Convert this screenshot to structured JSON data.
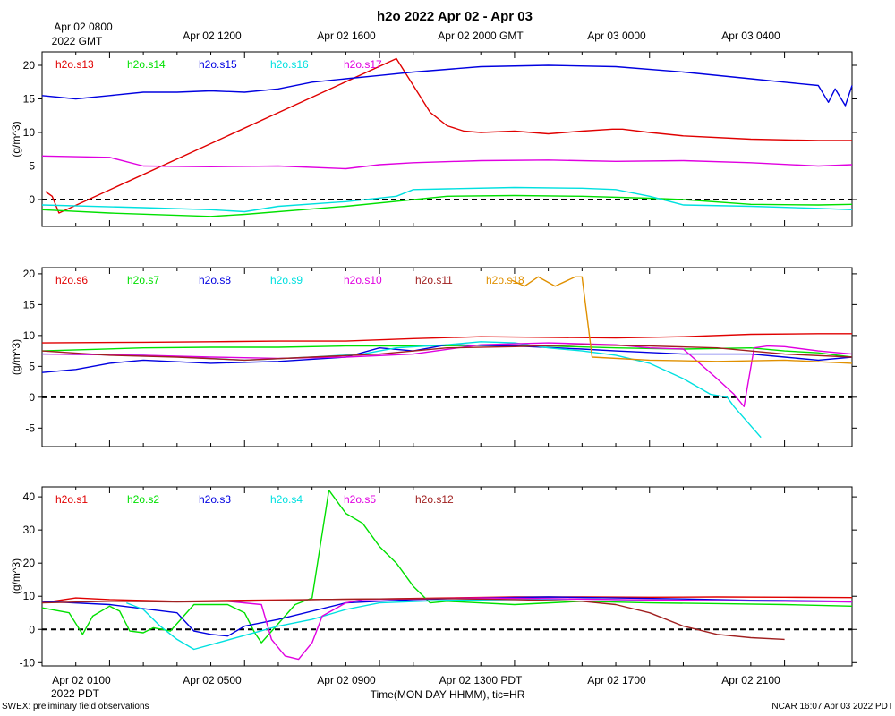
{
  "chart_data": {
    "title": "h2o 2022 Apr 02 - Apr 03",
    "type": "line",
    "xlabel": "Time(MON DAY HHMM), tic=HR",
    "top_time_labels": [
      "Apr 02 0800",
      "Apr 02 1200",
      "Apr 02 1600",
      "Apr 02 2000 GMT",
      "Apr 03 0000",
      "Apr 03 0400"
    ],
    "top_time_sub": "2022 GMT",
    "bottom_time_labels": [
      "Apr 02 0100",
      "Apr 02 0500",
      "Apr 02 0900",
      "Apr 02 1300 PDT",
      "Apr 02 1700",
      "Apr 02 2100"
    ],
    "bottom_time_sub": "2022 PDT",
    "x_range_hours": [
      -1.0,
      23.0
    ],
    "footer_left": "SWEX: preliminary field observations",
    "footer_right": "NCAR 16:07 Apr 03 2022 PDT",
    "panels": [
      {
        "ylabel": "(g/m^3)",
        "ylim": [
          -4,
          22
        ],
        "yticks": [
          0,
          5,
          10,
          15,
          20
        ],
        "zero_line": 0,
        "series": [
          {
            "name": "h2o.s13",
            "color": "#e00000",
            "x": [
              -0.9,
              -0.7,
              -0.5,
              9.5,
              10.0,
              10.5,
              11.0,
              11.5,
              12.0,
              13.0,
              14.0,
              15.0,
              15.9,
              16.2,
              17.0,
              18.0,
              20.0,
              22.0,
              23.0
            ],
            "y": [
              1.2,
              0.5,
              -2.0,
              21,
              17,
              13,
              11,
              10.2,
              10.0,
              10.2,
              9.8,
              10.2,
              10.5,
              10.5,
              10.0,
              9.5,
              9.0,
              8.8,
              8.8
            ]
          },
          {
            "name": "h2o.s14",
            "color": "#00e000",
            "x": [
              -1,
              1,
              4,
              5,
              8,
              11,
              13,
              15,
              17,
              18,
              20,
              22,
              23
            ],
            "y": [
              -1.5,
              -2.0,
              -2.5,
              -2.2,
              -1.0,
              0.5,
              0.6,
              0.5,
              0.2,
              0,
              -0.7,
              -0.8,
              -0.7
            ]
          },
          {
            "name": "h2o.s15",
            "color": "#0000e0",
            "x": [
              -1,
              0,
              1,
              2,
              3,
              4,
              5,
              6,
              7,
              8,
              9,
              10,
              12,
              14,
              16,
              18,
              20,
              21,
              22,
              22.3,
              22.5,
              22.8,
              23
            ],
            "y": [
              15.5,
              15.0,
              15.5,
              16,
              16,
              16.2,
              16,
              16.5,
              17.5,
              18,
              18.5,
              19,
              19.8,
              20,
              19.8,
              19,
              18,
              17.5,
              17,
              14.5,
              16.5,
              14,
              17
            ]
          },
          {
            "name": "h2o.s16",
            "color": "#00e0e0",
            "x": [
              -1,
              2,
              4,
              5,
              6,
              8,
              9.5,
              10,
              11,
              13,
              15,
              16,
              17,
              18,
              20,
              22,
              23
            ],
            "y": [
              -0.8,
              -1.2,
              -1.5,
              -1.8,
              -1.0,
              -0.3,
              0.5,
              1.5,
              1.6,
              1.8,
              1.7,
              1.5,
              0.5,
              -0.8,
              -1.0,
              -1.3,
              -1.5
            ]
          },
          {
            "name": "h2o.s17",
            "color": "#e000e0",
            "x": [
              -1,
              1,
              2,
              4,
              6,
              8,
              9,
              10,
              12,
              14,
              16,
              18,
              20,
              22,
              23
            ],
            "y": [
              6.5,
              6.3,
              5.0,
              4.9,
              5.0,
              4.6,
              5.2,
              5.5,
              5.8,
              5.9,
              5.7,
              5.8,
              5.5,
              5.0,
              5.2
            ]
          }
        ]
      },
      {
        "ylabel": "(g/m^3)",
        "ylim": [
          -8,
          21
        ],
        "yticks": [
          -5,
          0,
          5,
          10,
          15,
          20
        ],
        "zero_line": 0,
        "series": [
          {
            "name": "h2o.s6",
            "color": "#e00000",
            "x": [
              -1,
              2,
              4,
              6,
              8,
              10,
              12,
              14,
              16,
              18,
              20,
              22,
              23
            ],
            "y": [
              8.8,
              8.9,
              9.0,
              9.1,
              9.1,
              9.5,
              9.8,
              9.7,
              9.6,
              9.8,
              10.2,
              10.3,
              10.3
            ]
          },
          {
            "name": "h2o.s7",
            "color": "#00e000",
            "x": [
              -1,
              2,
              4,
              6,
              8,
              10,
              12,
              14,
              16,
              18,
              20,
              21,
              22,
              23
            ],
            "y": [
              7.5,
              8.0,
              8.1,
              8.1,
              8.3,
              8.3,
              8.4,
              8.3,
              8.0,
              7.8,
              8.0,
              7.5,
              7.2,
              6.5
            ]
          },
          {
            "name": "h2o.s8",
            "color": "#0000e0",
            "x": [
              -1,
              0,
              1,
              2,
              4,
              6,
              8,
              9,
              10,
              11,
              13,
              15,
              16,
              18,
              20,
              21,
              22,
              23
            ],
            "y": [
              4.0,
              4.5,
              5.5,
              6.0,
              5.5,
              5.8,
              6.5,
              8.0,
              7.5,
              8.5,
              8.3,
              7.8,
              7.5,
              7.0,
              7.0,
              6.5,
              6.0,
              6.5
            ]
          },
          {
            "name": "h2o.s9",
            "color": "#00e0e0",
            "x": [
              -1,
              2,
              5,
              7,
              8.5,
              9,
              9.5,
              11,
              12,
              13,
              14,
              15,
              16,
              17,
              18,
              18.8,
              19.3,
              19.5,
              20.3
            ],
            "y": [
              7.0,
              6.8,
              6.0,
              6.5,
              7.0,
              7.5,
              8.0,
              8.5,
              9.0,
              8.8,
              8.0,
              7.5,
              6.8,
              5.5,
              3.0,
              0.5,
              0,
              -1.5,
              -6.5
            ]
          },
          {
            "name": "h2o.s10",
            "color": "#e000e0",
            "x": [
              -1,
              2,
              4,
              6,
              8,
              10,
              12,
              14,
              16,
              17,
              18,
              19,
              19.5,
              19.8,
              20.1,
              20.5,
              21,
              22,
              23
            ],
            "y": [
              7.0,
              6.8,
              6.5,
              6.3,
              6.5,
              7.0,
              8.5,
              8.8,
              8.5,
              8.0,
              7.8,
              3.0,
              0.5,
              -1.5,
              8.0,
              8.3,
              8.2,
              7.5,
              7.0
            ]
          },
          {
            "name": "h2o.s11",
            "color": "#a02020",
            "x": [
              -1,
              1,
              3,
              5,
              7,
              9,
              11,
              13,
              15,
              17,
              19,
              21,
              23
            ],
            "y": [
              7.5,
              6.8,
              6.5,
              6.0,
              6.5,
              7.0,
              8.0,
              8.2,
              8.5,
              8.3,
              8.0,
              7.0,
              6.5
            ]
          },
          {
            "name": "h2o.s18",
            "color": "#e09000",
            "x": [
              12.9,
              13.3,
              13.7,
              14.2,
              14.8,
              15.0,
              15.3,
              17,
              19,
              21,
              23
            ],
            "y": [
              19.0,
              18.0,
              19.5,
              18.0,
              19.5,
              19.5,
              6.5,
              6.0,
              5.8,
              6.0,
              5.5
            ]
          }
        ]
      },
      {
        "ylabel": "(g/m^3)",
        "ylim": [
          -11,
          43
        ],
        "yticks": [
          -10,
          0,
          10,
          20,
          30,
          40
        ],
        "zero_line": 0,
        "series": [
          {
            "name": "h2o.s1",
            "color": "#e00000",
            "x": [
              -1,
              0,
              1,
              3,
              5,
              7,
              9,
              11,
              13,
              15,
              17,
              19,
              21,
              23
            ],
            "y": [
              8.0,
              9.5,
              9.0,
              8.5,
              8.8,
              9.0,
              9.2,
              9.5,
              9.8,
              9.8,
              9.7,
              9.8,
              9.7,
              9.6
            ]
          },
          {
            "name": "h2o.s2",
            "color": "#00e000",
            "x": [
              -1,
              -0.2,
              0.2,
              0.5,
              1,
              1.3,
              1.6,
              2.0,
              2.3,
              2.8,
              3.5,
              4.5,
              5.0,
              5.3,
              5.5,
              6.5,
              7.0,
              7.5,
              8.0,
              8.5,
              9.0,
              9.5,
              10.0,
              10.5,
              11,
              13,
              15,
              17,
              19,
              21,
              23
            ],
            "y": [
              6.5,
              5.0,
              -1.5,
              4.0,
              7.0,
              5.5,
              -0.5,
              -1.0,
              0.5,
              -0.5,
              7.5,
              7.5,
              5.0,
              -1.0,
              -4.0,
              7.5,
              9.5,
              42,
              35,
              32,
              25,
              20,
              13,
              8.0,
              8.5,
              7.5,
              8.5,
              8.0,
              7.8,
              7.5,
              7.0
            ]
          },
          {
            "name": "h2o.s3",
            "color": "#0000e0",
            "x": [
              -1,
              1,
              3,
              3.5,
              4,
              4.5,
              5,
              6,
              8,
              10,
              12,
              14,
              16,
              18,
              20,
              22,
              23
            ],
            "y": [
              8.5,
              7.5,
              5.0,
              -0.5,
              -1.5,
              -2.0,
              1.0,
              3.0,
              8.0,
              9.0,
              9.5,
              9.8,
              9.5,
              9.2,
              8.8,
              8.6,
              8.5
            ]
          },
          {
            "name": "h2o.s4",
            "color": "#00e0e0",
            "x": [
              1.5,
              2,
              2.5,
              3,
              3.5,
              6,
              7,
              8,
              9,
              11,
              13,
              15,
              17,
              19,
              21,
              23
            ],
            "y": [
              8.0,
              6.0,
              1.0,
              -3.0,
              -6.0,
              1.0,
              3.0,
              6.0,
              8.0,
              8.8,
              9.0,
              9.2,
              8.8,
              8.7,
              8.5,
              8.3
            ]
          },
          {
            "name": "h2o.s5",
            "color": "#e000e0",
            "x": [
              4.5,
              5.5,
              5.8,
              6.2,
              6.6,
              7.0,
              7.3,
              8.0,
              8.5,
              10,
              12,
              14,
              16,
              18,
              20,
              22,
              23
            ],
            "y": [
              8.5,
              7.5,
              -3.0,
              -8.0,
              -9.0,
              -4.0,
              4.0,
              8.0,
              9.0,
              9.2,
              9.5,
              9.3,
              9.0,
              8.8,
              8.6,
              8.4,
              8.3
            ]
          },
          {
            "name": "h2o.s12",
            "color": "#a02020",
            "x": [
              -1,
              1,
              3,
              5,
              7,
              9,
              11,
              13,
              15,
              16,
              17,
              18,
              19,
              20,
              21
            ],
            "y": [
              8.0,
              8.5,
              8.3,
              8.5,
              9.0,
              9.2,
              9.3,
              9.0,
              8.5,
              7.5,
              5.0,
              1.0,
              -1.5,
              -2.5,
              -3.0
            ]
          }
        ]
      }
    ]
  }
}
